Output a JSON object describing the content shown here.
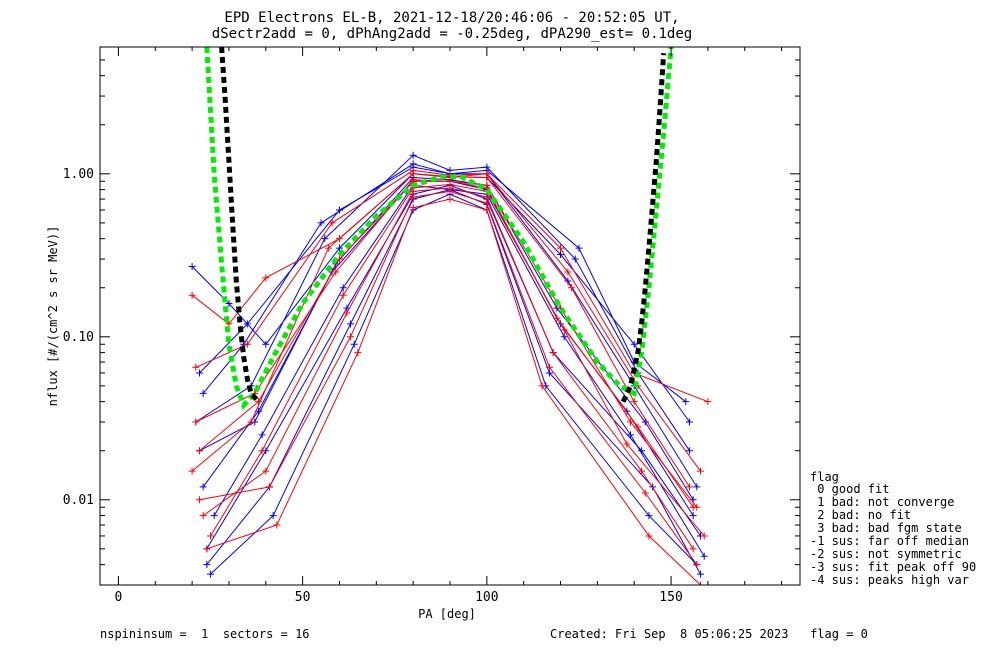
{
  "chart_data": {
    "type": "line",
    "title": "EPD Electrons EL-B, 2021-12-18/20:46:06 - 20:52:05 UT,",
    "subtitle": "dSectr2add = 0, dPhAng2add = -0.25deg, dPA290_est=   0.1deg",
    "xlabel": "PA [deg]",
    "ylabel": "nflux [#/(cm^2 s sr MeV)]",
    "xlim": [
      -5,
      185
    ],
    "ylim": [
      0.003,
      6.0
    ],
    "y_scale": "log",
    "x_ticks": [
      0,
      50,
      100,
      150
    ],
    "y_ticks": [
      0.01,
      0.1,
      1.0
    ],
    "y_tick_labels": [
      "0.01",
      "0.10",
      "1.00"
    ],
    "colors": {
      "scan_a": "#0000ff",
      "scan_b": "#ff0000",
      "fit_a": "#00ee00",
      "fit_b": "#000000"
    },
    "series": [
      {
        "color": "#00ee00",
        "style": "dashed",
        "x": [
          24,
          26,
          28,
          30,
          32,
          34,
          37,
          42,
          50,
          60,
          70,
          80,
          88,
          93,
          100,
          110,
          120,
          130,
          136,
          140,
          142,
          144,
          146,
          148,
          150
        ],
        "y": [
          6.0,
          1.0,
          0.28,
          0.09,
          0.05,
          0.038,
          0.045,
          0.075,
          0.16,
          0.32,
          0.55,
          0.85,
          0.96,
          0.96,
          0.8,
          0.38,
          0.15,
          0.07,
          0.05,
          0.045,
          0.08,
          0.2,
          0.6,
          1.8,
          6.0
        ]
      },
      {
        "color": "#000000",
        "style": "dashed",
        "x": [
          28,
          29,
          30,
          31,
          32,
          33,
          34,
          35,
          36,
          38
        ],
        "y": [
          6.0,
          2.8,
          1.2,
          0.5,
          0.22,
          0.12,
          0.075,
          0.055,
          0.045,
          0.04
        ]
      },
      {
        "color": "#000000",
        "style": "dashed",
        "x": [
          137,
          139,
          141,
          142,
          143,
          144,
          145,
          146,
          147,
          148
        ],
        "y": [
          0.04,
          0.05,
          0.08,
          0.12,
          0.2,
          0.35,
          0.65,
          1.2,
          2.5,
          5.5
        ]
      },
      {
        "color": "#0000ff",
        "x": [
          20,
          30,
          40,
          60,
          80,
          90,
          100,
          120,
          140,
          155
        ],
        "y": [
          0.27,
          0.16,
          0.09,
          0.35,
          1.0,
          0.96,
          0.95,
          0.32,
          0.09,
          0.03
        ]
      },
      {
        "color": "#0000ff",
        "x": [
          22,
          35,
          60,
          80,
          90,
          100,
          122,
          140,
          157
        ],
        "y": [
          0.06,
          0.12,
          0.6,
          1.1,
          1.0,
          1.0,
          0.22,
          0.05,
          0.012
        ]
      },
      {
        "color": "#0000ff",
        "x": [
          23,
          38,
          58,
          80,
          90,
          100,
          120,
          138,
          156
        ],
        "y": [
          0.012,
          0.035,
          0.25,
          0.9,
          0.9,
          0.8,
          0.12,
          0.035,
          0.008
        ]
      },
      {
        "color": "#0000ff",
        "x": [
          24,
          40,
          62,
          80,
          90,
          100,
          118,
          142,
          158
        ],
        "y": [
          0.005,
          0.02,
          0.15,
          0.75,
          0.85,
          0.7,
          0.08,
          0.02,
          0.006
        ]
      },
      {
        "color": "#0000ff",
        "x": [
          25,
          42,
          64,
          80,
          90,
          100,
          116,
          144,
          157
        ],
        "y": [
          0.0035,
          0.008,
          0.09,
          0.6,
          0.75,
          0.6,
          0.05,
          0.008,
          0.004
        ]
      },
      {
        "color": "#0000ff",
        "x": [
          21,
          36,
          56,
          80,
          90,
          100,
          124,
          141,
          155
        ],
        "y": [
          0.03,
          0.05,
          0.4,
          1.3,
          1.05,
          1.1,
          0.3,
          0.06,
          0.02
        ]
      },
      {
        "color": "#0000ff",
        "x": [
          26,
          39,
          61,
          80,
          90,
          100,
          121,
          139,
          159
        ],
        "y": [
          0.008,
          0.025,
          0.2,
          0.85,
          0.8,
          0.75,
          0.1,
          0.025,
          0.0045
        ]
      },
      {
        "color": "#0000ff",
        "x": [
          22,
          37,
          59,
          80,
          90,
          100,
          119,
          143,
          156
        ],
        "y": [
          0.02,
          0.03,
          0.28,
          0.95,
          0.92,
          0.85,
          0.15,
          0.03,
          0.01
        ]
      },
      {
        "color": "#0000ff",
        "x": [
          24,
          41,
          63,
          80,
          90,
          100,
          117,
          145,
          158
        ],
        "y": [
          0.004,
          0.012,
          0.12,
          0.7,
          0.8,
          0.65,
          0.06,
          0.012,
          0.0035
        ]
      },
      {
        "color": "#0000ff",
        "x": [
          23,
          34,
          55,
          80,
          90,
          100,
          125,
          140,
          154
        ],
        "y": [
          0.045,
          0.09,
          0.5,
          1.15,
          1.0,
          1.05,
          0.35,
          0.07,
          0.04
        ]
      },
      {
        "color": "#ff0000",
        "x": [
          20,
          30,
          40,
          60,
          80,
          90,
          100,
          120,
          140,
          160
        ],
        "y": [
          0.18,
          0.12,
          0.23,
          0.4,
          1.0,
          0.95,
          1.0,
          0.35,
          0.06,
          0.04
        ]
      },
      {
        "color": "#ff0000",
        "x": [
          21,
          35,
          58,
          80,
          90,
          100,
          122,
          141,
          158
        ],
        "y": [
          0.065,
          0.09,
          0.5,
          1.05,
          0.98,
          1.0,
          0.25,
          0.05,
          0.015
        ]
      },
      {
        "color": "#ff0000",
        "x": [
          22,
          38,
          60,
          80,
          90,
          100,
          120,
          139,
          157
        ],
        "y": [
          0.02,
          0.04,
          0.3,
          0.9,
          0.9,
          0.85,
          0.15,
          0.03,
          0.009
        ]
      },
      {
        "color": "#ff0000",
        "x": [
          23,
          40,
          62,
          80,
          90,
          100,
          118,
          142,
          156
        ],
        "y": [
          0.008,
          0.015,
          0.14,
          0.78,
          0.82,
          0.72,
          0.08,
          0.015,
          0.005
        ]
      },
      {
        "color": "#ff0000",
        "x": [
          24,
          43,
          65,
          80,
          90,
          100,
          115,
          144,
          158
        ],
        "y": [
          0.005,
          0.007,
          0.08,
          0.62,
          0.7,
          0.6,
          0.05,
          0.006,
          0.003
        ]
      },
      {
        "color": "#ff0000",
        "x": [
          20,
          36,
          57,
          80,
          90,
          100,
          123,
          140,
          155
        ],
        "y": [
          0.015,
          0.03,
          0.35,
          1.0,
          0.96,
          0.95,
          0.2,
          0.04,
          0.012
        ]
      },
      {
        "color": "#ff0000",
        "x": [
          25,
          39,
          61,
          80,
          90,
          100,
          121,
          138,
          159
        ],
        "y": [
          0.006,
          0.02,
          0.18,
          0.82,
          0.86,
          0.78,
          0.11,
          0.022,
          0.006
        ]
      },
      {
        "color": "#ff0000",
        "x": [
          22,
          41,
          63,
          80,
          90,
          100,
          117,
          143,
          157
        ],
        "y": [
          0.01,
          0.012,
          0.1,
          0.72,
          0.78,
          0.66,
          0.065,
          0.011,
          0.004
        ]
      },
      {
        "color": "#ff0000",
        "x": [
          21,
          37,
          59,
          80,
          90,
          100,
          119,
          141,
          156
        ],
        "y": [
          0.03,
          0.045,
          0.25,
          0.92,
          0.9,
          0.82,
          0.13,
          0.028,
          0.009
        ]
      }
    ]
  },
  "legend": {
    "title": "flag",
    "items": [
      " 0 good fit",
      " 1 bad: not converge",
      " 2 bad: no fit",
      " 3 bad: bad fgm state",
      "-1 sus: far off median",
      "-2 sus: not symmetric",
      "-3 sus: fit peak off 90",
      "-4 sus: peaks high var"
    ]
  },
  "footer": {
    "left": "nspininsum =  1  sectors = 16",
    "right": "Created: Fri Sep  8 05:06:25 2023   flag = 0"
  }
}
